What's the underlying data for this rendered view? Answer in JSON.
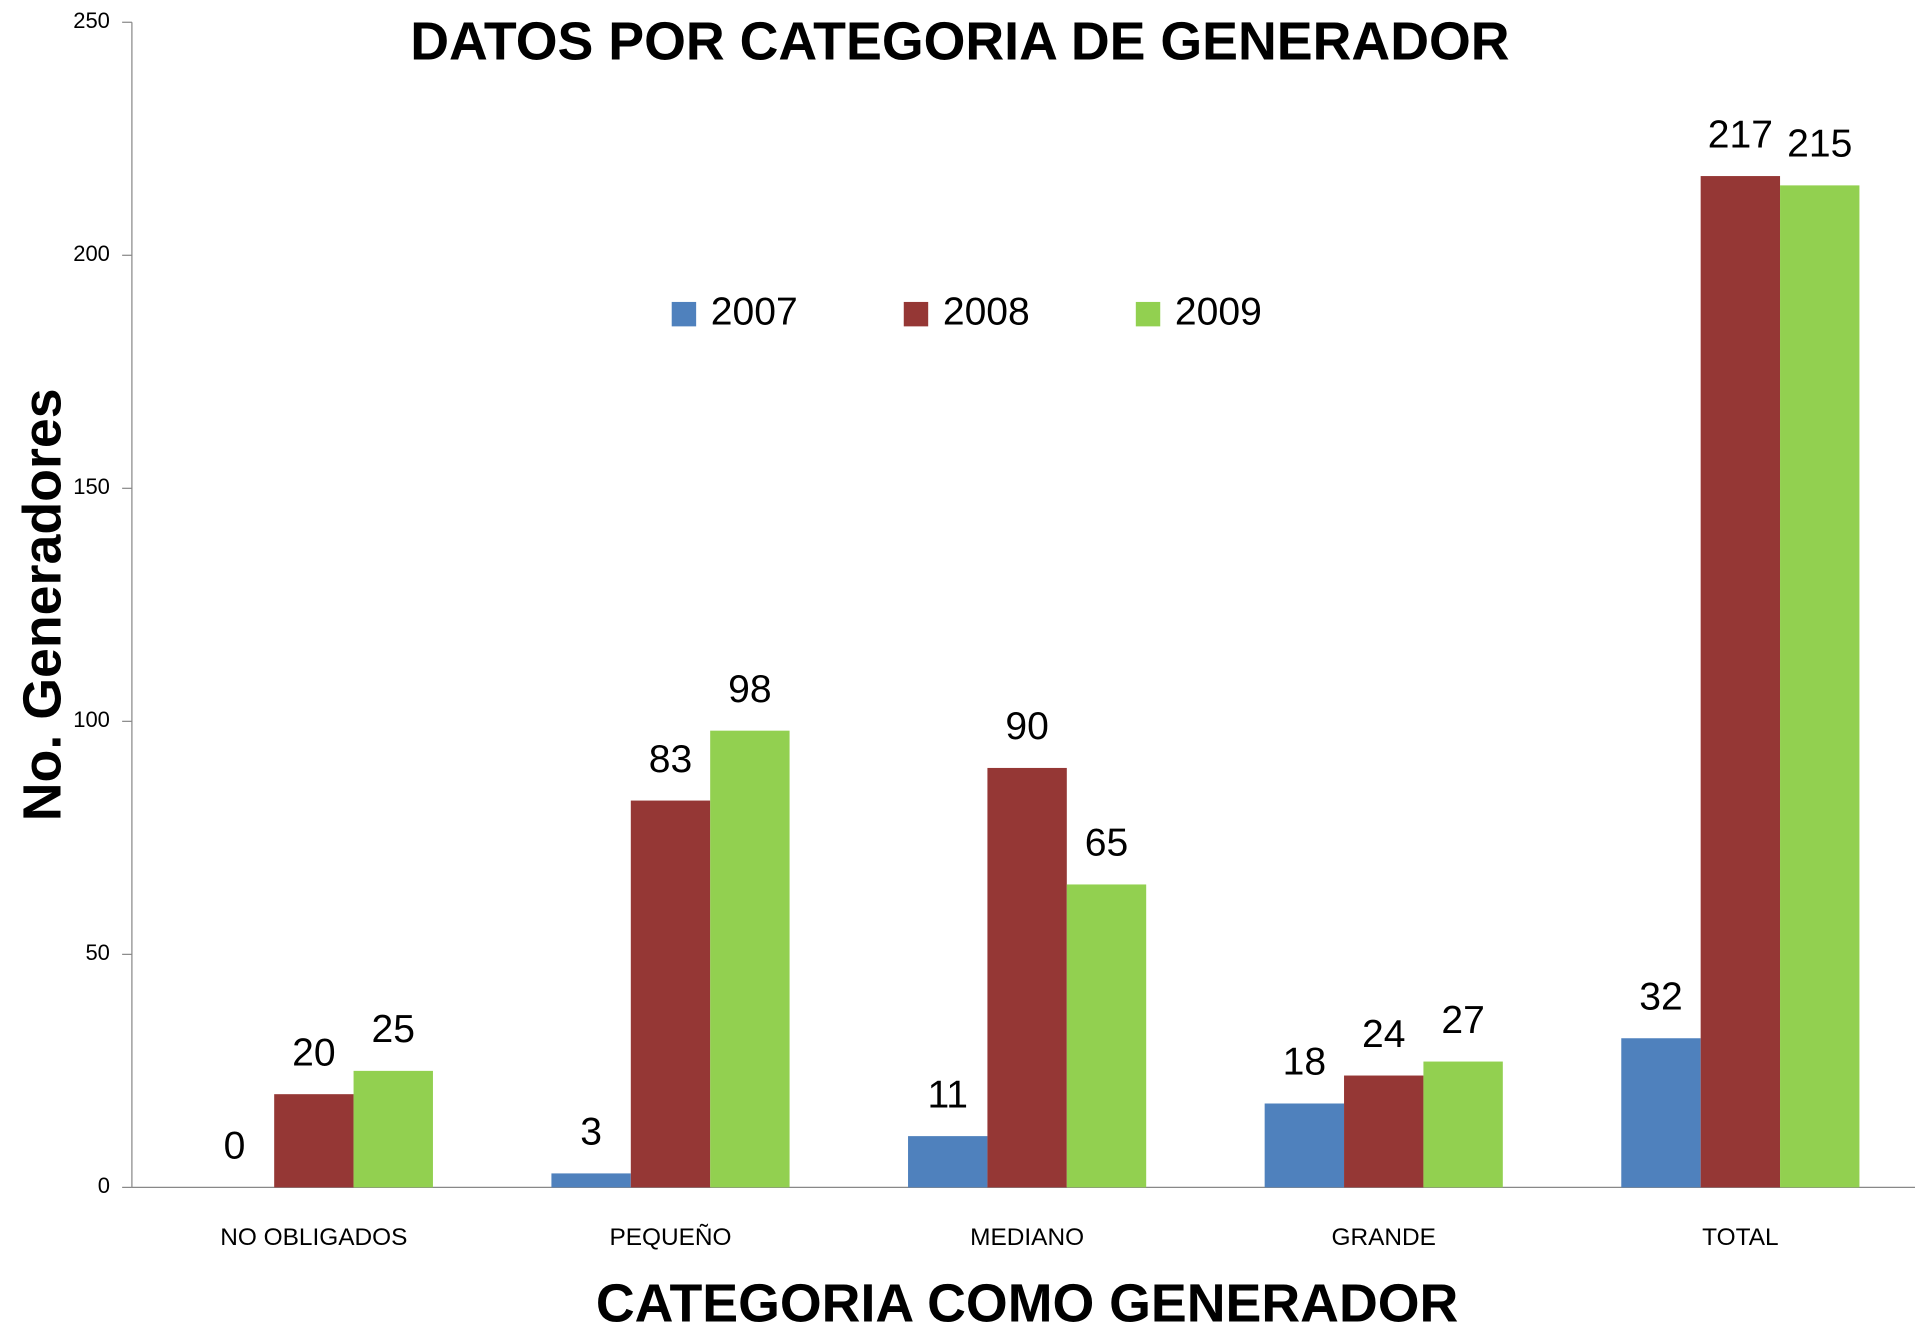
{
  "chart_data": {
    "type": "bar",
    "title": "DATOS POR CATEGORIA DE GENERADOR",
    "x_label": "CATEGORIA COMO GENERADOR",
    "y_label": "No. Generadores",
    "categories": [
      "NO OBLIGADOS",
      "PEQUEÑO",
      "MEDIANO",
      "GRANDE",
      "TOTAL"
    ],
    "series": [
      {
        "name": "2007",
        "color": "#4f81bd",
        "values": [
          0,
          3,
          11,
          18,
          32
        ]
      },
      {
        "name": "2008",
        "color": "#953735",
        "values": [
          20,
          83,
          90,
          24,
          217
        ]
      },
      {
        "name": "2009",
        "color": "#92d050",
        "values": [
          25,
          98,
          65,
          27,
          215
        ]
      }
    ],
    "ylim": [
      0,
      250
    ],
    "yticks": [
      0,
      50,
      100,
      150,
      200,
      250
    ],
    "grid": false,
    "legend": "top"
  }
}
